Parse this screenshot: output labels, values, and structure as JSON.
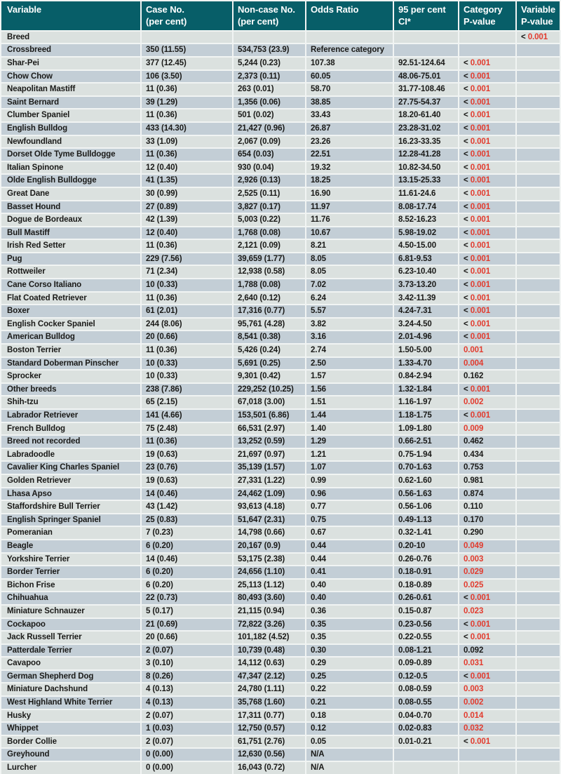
{
  "colors": {
    "header_bg": "#075e68",
    "row_light": "#dbe1df",
    "row_dark": "#c3ced6",
    "significant": "#e23b2e",
    "text": "#1a1a18",
    "grid": "#f1f4f3"
  },
  "table": {
    "columns": [
      "Variable",
      "Case No.\n(per cent)",
      "Non-case No.\n(per cent)",
      "Odds Ratio",
      "95 per cent\nCI*",
      "Category\nP-value",
      "Variable\nP-value"
    ],
    "rows": [
      {
        "variable": "Breed",
        "case_no": "",
        "noncase_no": "",
        "odds_ratio": "",
        "ci": "",
        "cat_p": null,
        "var_p": {
          "lt": true,
          "v": "0.001",
          "sig": true
        }
      },
      {
        "variable": "Crossbreed",
        "case_no": "350 (11.55)",
        "noncase_no": "534,753 (23.9)",
        "odds_ratio": "Reference category",
        "ci": "",
        "cat_p": null,
        "var_p": null
      },
      {
        "variable": "Shar-Pei",
        "case_no": "377 (12.45)",
        "noncase_no": "5,244 (0.23)",
        "odds_ratio": "107.38",
        "ci": "92.51-124.64",
        "cat_p": {
          "lt": true,
          "v": "0.001",
          "sig": true
        },
        "var_p": null
      },
      {
        "variable": "Chow Chow",
        "case_no": "106 (3.50)",
        "noncase_no": "2,373 (0.11)",
        "odds_ratio": "60.05",
        "ci": "48.06-75.01",
        "cat_p": {
          "lt": true,
          "v": "0.001",
          "sig": true
        },
        "var_p": null
      },
      {
        "variable": "Neapolitan Mastiff",
        "case_no": "11 (0.36)",
        "noncase_no": "263 (0.01)",
        "odds_ratio": "58.70",
        "ci": "31.77-108.46",
        "cat_p": {
          "lt": true,
          "v": "0.001",
          "sig": true
        },
        "var_p": null
      },
      {
        "variable": "Saint Bernard",
        "case_no": "39 (1.29)",
        "noncase_no": "1,356 (0.06)",
        "odds_ratio": "38.85",
        "ci": "27.75-54.37",
        "cat_p": {
          "lt": true,
          "v": "0.001",
          "sig": true
        },
        "var_p": null
      },
      {
        "variable": "Clumber Spaniel",
        "case_no": "11 (0.36)",
        "noncase_no": "501 (0.02)",
        "odds_ratio": "33.43",
        "ci": "18.20-61.40",
        "cat_p": {
          "lt": true,
          "v": "0.001",
          "sig": true
        },
        "var_p": null
      },
      {
        "variable": "English Bulldog",
        "case_no": "433 (14.30)",
        "noncase_no": "21,427 (0.96)",
        "odds_ratio": "26.87",
        "ci": "23.28-31.02",
        "cat_p": {
          "lt": true,
          "v": "0.001",
          "sig": true
        },
        "var_p": null
      },
      {
        "variable": "Newfoundland",
        "case_no": "33 (1.09)",
        "noncase_no": "2,067 (0.09)",
        "odds_ratio": "23.26",
        "ci": "16.23-33.35",
        "cat_p": {
          "lt": true,
          "v": "0.001",
          "sig": true
        },
        "var_p": null
      },
      {
        "variable": "Dorset Olde Tyme Bulldogge",
        "case_no": "11 (0.36)",
        "noncase_no": "654 (0.03)",
        "odds_ratio": "22.51",
        "ci": "12.28-41.28",
        "cat_p": {
          "lt": true,
          "v": "0.001",
          "sig": true
        },
        "var_p": null
      },
      {
        "variable": "Italian Spinone",
        "case_no": "12 (0.40)",
        "noncase_no": "930 (0.04)",
        "odds_ratio": "19.32",
        "ci": "10.82-34.50",
        "cat_p": {
          "lt": true,
          "v": "0.001",
          "sig": true
        },
        "var_p": null
      },
      {
        "variable": "Olde English Bulldogge",
        "case_no": "41 (1.35)",
        "noncase_no": "2,926 (0.13)",
        "odds_ratio": "18.25",
        "ci": "13.15-25.33",
        "cat_p": {
          "lt": true,
          "v": "0.001",
          "sig": true
        },
        "var_p": null
      },
      {
        "variable": "Great Dane",
        "case_no": "30 (0.99)",
        "noncase_no": "2,525 (0.11)",
        "odds_ratio": "16.90",
        "ci": "11.61-24.6",
        "cat_p": {
          "lt": true,
          "v": "0.001",
          "sig": true
        },
        "var_p": null
      },
      {
        "variable": "Basset Hound",
        "case_no": "27 (0.89)",
        "noncase_no": "3,827 (0.17)",
        "odds_ratio": "11.97",
        "ci": "8.08-17.74",
        "cat_p": {
          "lt": true,
          "v": "0.001",
          "sig": true
        },
        "var_p": null
      },
      {
        "variable": "Dogue de Bordeaux",
        "case_no": "42 (1.39)",
        "noncase_no": "5,003 (0.22)",
        "odds_ratio": "11.76",
        "ci": "8.52-16.23",
        "cat_p": {
          "lt": true,
          "v": "0.001",
          "sig": true
        },
        "var_p": null
      },
      {
        "variable": "Bull Mastiff",
        "case_no": "12 (0.40)",
        "noncase_no": "1,768 (0.08)",
        "odds_ratio": "10.67",
        "ci": "5.98-19.02",
        "cat_p": {
          "lt": true,
          "v": "0.001",
          "sig": true
        },
        "var_p": null
      },
      {
        "variable": "Irish Red Setter",
        "case_no": "11 (0.36)",
        "noncase_no": "2,121 (0.09)",
        "odds_ratio": "8.21",
        "ci": "4.50-15.00",
        "cat_p": {
          "lt": true,
          "v": "0.001",
          "sig": true
        },
        "var_p": null
      },
      {
        "variable": "Pug",
        "case_no": "229 (7.56)",
        "noncase_no": "39,659 (1.77)",
        "odds_ratio": "8.05",
        "ci": "6.81-9.53",
        "cat_p": {
          "lt": true,
          "v": "0.001",
          "sig": true
        },
        "var_p": null
      },
      {
        "variable": "Rottweiler",
        "case_no": "71 (2.34)",
        "noncase_no": "12,938 (0.58)",
        "odds_ratio": "8.05",
        "ci": "6.23-10.40",
        "cat_p": {
          "lt": true,
          "v": "0.001",
          "sig": true
        },
        "var_p": null
      },
      {
        "variable": "Cane Corso Italiano",
        "case_no": "10 (0.33)",
        "noncase_no": "1,788 (0.08)",
        "odds_ratio": "7.02",
        "ci": "3.73-13.20",
        "cat_p": {
          "lt": true,
          "v": "0.001",
          "sig": true
        },
        "var_p": null
      },
      {
        "variable": "Flat Coated Retriever",
        "case_no": "11 (0.36)",
        "noncase_no": "2,640 (0.12)",
        "odds_ratio": "6.24",
        "ci": "3.42-11.39",
        "cat_p": {
          "lt": true,
          "v": "0.001",
          "sig": true
        },
        "var_p": null
      },
      {
        "variable": "Boxer",
        "case_no": "61 (2.01)",
        "noncase_no": "17,316 (0.77)",
        "odds_ratio": "5.57",
        "ci": "4.24-7.31",
        "cat_p": {
          "lt": true,
          "v": "0.001",
          "sig": true
        },
        "var_p": null
      },
      {
        "variable": "English Cocker Spaniel",
        "case_no": "244 (8.06)",
        "noncase_no": "95,761 (4.28)",
        "odds_ratio": "3.82",
        "ci": "3.24-4.50",
        "cat_p": {
          "lt": true,
          "v": "0.001",
          "sig": true
        },
        "var_p": null
      },
      {
        "variable": "American Bulldog",
        "case_no": "20 (0.66)",
        "noncase_no": "8,541 (0.38)",
        "odds_ratio": "3.16",
        "ci": "2.01-4.96",
        "cat_p": {
          "lt": true,
          "v": "0.001",
          "sig": true
        },
        "var_p": null
      },
      {
        "variable": "Boston Terrier",
        "case_no": "11 (0.36)",
        "noncase_no": "5,426 (0.24)",
        "odds_ratio": "2.74",
        "ci": "1.50-5.00",
        "cat_p": {
          "lt": false,
          "v": "0.001",
          "sig": true
        },
        "var_p": null
      },
      {
        "variable": "Standard Doberman Pinscher",
        "case_no": "10 (0.33)",
        "noncase_no": "5,691 (0.25)",
        "odds_ratio": "2.50",
        "ci": "1.33-4.70",
        "cat_p": {
          "lt": false,
          "v": "0.004",
          "sig": true
        },
        "var_p": null
      },
      {
        "variable": "Sprocker",
        "case_no": "10 (0.33)",
        "noncase_no": "9,301 (0.42)",
        "odds_ratio": "1.57",
        "ci": "0.84-2.94",
        "cat_p": {
          "lt": false,
          "v": "0.162",
          "sig": false
        },
        "var_p": null
      },
      {
        "variable": "Other breeds",
        "case_no": "238 (7.86)",
        "noncase_no": "229,252 (10.25)",
        "odds_ratio": "1.56",
        "ci": "1.32-1.84",
        "cat_p": {
          "lt": true,
          "v": "0.001",
          "sig": true
        },
        "var_p": null
      },
      {
        "variable": "Shih-tzu",
        "case_no": "65 (2.15)",
        "noncase_no": "67,018 (3.00)",
        "odds_ratio": "1.51",
        "ci": "1.16-1.97",
        "cat_p": {
          "lt": false,
          "v": "0.002",
          "sig": true
        },
        "var_p": null
      },
      {
        "variable": "Labrador Retriever",
        "case_no": "141 (4.66)",
        "noncase_no": "153,501 (6.86)",
        "odds_ratio": "1.44",
        "ci": "1.18-1.75",
        "cat_p": {
          "lt": true,
          "v": "0.001",
          "sig": true
        },
        "var_p": null
      },
      {
        "variable": "French Bulldog",
        "case_no": "75 (2.48)",
        "noncase_no": "66,531 (2.97)",
        "odds_ratio": "1.40",
        "ci": "1.09-1.80",
        "cat_p": {
          "lt": false,
          "v": "0.009",
          "sig": true
        },
        "var_p": null
      },
      {
        "variable": "Breed not recorded",
        "case_no": "11 (0.36)",
        "noncase_no": "13,252 (0.59)",
        "odds_ratio": "1.29",
        "ci": "0.66-2.51",
        "cat_p": {
          "lt": false,
          "v": "0.462",
          "sig": false
        },
        "var_p": null
      },
      {
        "variable": "Labradoodle",
        "case_no": "19 (0.63)",
        "noncase_no": "21,697 (0.97)",
        "odds_ratio": "1.21",
        "ci": "0.75-1.94",
        "cat_p": {
          "lt": false,
          "v": "0.434",
          "sig": false
        },
        "var_p": null
      },
      {
        "variable": "Cavalier King Charles Spaniel",
        "case_no": "23 (0.76)",
        "noncase_no": "35,139 (1.57)",
        "odds_ratio": "1.07",
        "ci": "0.70-1.63",
        "cat_p": {
          "lt": false,
          "v": "0.753",
          "sig": false
        },
        "var_p": null
      },
      {
        "variable": "Golden Retriever",
        "case_no": "19 (0.63)",
        "noncase_no": "27,331 (1.22)",
        "odds_ratio": "0.99",
        "ci": "0.62-1.60",
        "cat_p": {
          "lt": false,
          "v": "0.981",
          "sig": false
        },
        "var_p": null
      },
      {
        "variable": "Lhasa Apso",
        "case_no": "14 (0.46)",
        "noncase_no": "24,462 (1.09)",
        "odds_ratio": "0.96",
        "ci": "0.56-1.63",
        "cat_p": {
          "lt": false,
          "v": "0.874",
          "sig": false
        },
        "var_p": null
      },
      {
        "variable": "Staffordshire Bull Terrier",
        "case_no": "43 (1.42)",
        "noncase_no": "93,613 (4.18)",
        "odds_ratio": "0.77",
        "ci": "0.56-1.06",
        "cat_p": {
          "lt": false,
          "v": "0.110",
          "sig": false
        },
        "var_p": null
      },
      {
        "variable": "English Springer Spaniel",
        "case_no": "25 (0.83)",
        "noncase_no": "51,647 (2.31)",
        "odds_ratio": "0.75",
        "ci": "0.49-1.13",
        "cat_p": {
          "lt": false,
          "v": "0.170",
          "sig": false
        },
        "var_p": null
      },
      {
        "variable": "Pomeranian",
        "case_no": "7 (0.23)",
        "noncase_no": "14,798 (0.66)",
        "odds_ratio": "0.67",
        "ci": "0.32-1.41",
        "cat_p": {
          "lt": false,
          "v": "0.290",
          "sig": false
        },
        "var_p": null
      },
      {
        "variable": "Beagle",
        "case_no": "6 (0.20)",
        "noncase_no": "20,167 (0.9)",
        "odds_ratio": "0.44",
        "ci": "0.20-10",
        "cat_p": {
          "lt": false,
          "v": "0.049",
          "sig": true
        },
        "var_p": null
      },
      {
        "variable": "Yorkshire Terrier",
        "case_no": "14 (0.46)",
        "noncase_no": "53,175 (2.38)",
        "odds_ratio": "0.44",
        "ci": "0.26-0.76",
        "cat_p": {
          "lt": false,
          "v": "0.003",
          "sig": true
        },
        "var_p": null
      },
      {
        "variable": "Border Terrier",
        "case_no": "6 (0.20)",
        "noncase_no": "24,656 (1.10)",
        "odds_ratio": "0.41",
        "ci": "0.18-0.91",
        "cat_p": {
          "lt": false,
          "v": "0.029",
          "sig": true
        },
        "var_p": null
      },
      {
        "variable": "Bichon Frise",
        "case_no": "6 (0.20)",
        "noncase_no": "25,113 (1.12)",
        "odds_ratio": "0.40",
        "ci": "0.18-0.89",
        "cat_p": {
          "lt": false,
          "v": "0.025",
          "sig": true
        },
        "var_p": null
      },
      {
        "variable": "Chihuahua",
        "case_no": "22 (0.73)",
        "noncase_no": "80,493 (3.60)",
        "odds_ratio": "0.40",
        "ci": "0.26-0.61",
        "cat_p": {
          "lt": true,
          "v": "0.001",
          "sig": true
        },
        "var_p": null
      },
      {
        "variable": "Miniature Schnauzer",
        "case_no": "5 (0.17)",
        "noncase_no": "21,115 (0.94)",
        "odds_ratio": "0.36",
        "ci": "0.15-0.87",
        "cat_p": {
          "lt": false,
          "v": "0.023",
          "sig": true
        },
        "var_p": null
      },
      {
        "variable": "Cockapoo",
        "case_no": "21 (0.69)",
        "noncase_no": "72,822 (3.26)",
        "odds_ratio": "0.35",
        "ci": "0.23-0.56",
        "cat_p": {
          "lt": true,
          "v": "0.001",
          "sig": true
        },
        "var_p": null
      },
      {
        "variable": "Jack Russell Terrier",
        "case_no": "20 (0.66)",
        "noncase_no": "101,182 (4.52)",
        "odds_ratio": "0.35",
        "ci": "0.22-0.55",
        "cat_p": {
          "lt": true,
          "v": "0.001",
          "sig": true
        },
        "var_p": null
      },
      {
        "variable": "Patterdale Terrier",
        "case_no": "2 (0.07)",
        "noncase_no": "10,739 (0.48)",
        "odds_ratio": "0.30",
        "ci": "0.08-1.21",
        "cat_p": {
          "lt": false,
          "v": "0.092",
          "sig": false
        },
        "var_p": null
      },
      {
        "variable": "Cavapoo",
        "case_no": "3 (0.10)",
        "noncase_no": "14,112 (0.63)",
        "odds_ratio": "0.29",
        "ci": "0.09-0.89",
        "cat_p": {
          "lt": false,
          "v": "0.031",
          "sig": true
        },
        "var_p": null
      },
      {
        "variable": "German Shepherd Dog",
        "case_no": "8 (0.26)",
        "noncase_no": "47,347 (2.12)",
        "odds_ratio": "0.25",
        "ci": "0.12-0.5",
        "cat_p": {
          "lt": true,
          "v": "0.001",
          "sig": true
        },
        "var_p": null
      },
      {
        "variable": "Miniature Dachshund",
        "case_no": "4 (0.13)",
        "noncase_no": "24,780 (1.11)",
        "odds_ratio": "0.22",
        "ci": "0.08-0.59",
        "cat_p": {
          "lt": false,
          "v": "0.003",
          "sig": true
        },
        "var_p": null
      },
      {
        "variable": "West Highland White Terrier",
        "case_no": "4 (0.13)",
        "noncase_no": "35,768 (1.60)",
        "odds_ratio": "0.21",
        "ci": "0.08-0.55",
        "cat_p": {
          "lt": false,
          "v": "0.002",
          "sig": true
        },
        "var_p": null
      },
      {
        "variable": "Husky",
        "case_no": "2 (0.07)",
        "noncase_no": "17,311 (0.77)",
        "odds_ratio": "0.18",
        "ci": "0.04-0.70",
        "cat_p": {
          "lt": false,
          "v": "0.014",
          "sig": true
        },
        "var_p": null
      },
      {
        "variable": "Whippet",
        "case_no": "1 (0.03)",
        "noncase_no": "12,750 (0.57)",
        "odds_ratio": "0.12",
        "ci": "0.02-0.83",
        "cat_p": {
          "lt": false,
          "v": "0.032",
          "sig": true
        },
        "var_p": null
      },
      {
        "variable": "Border Collie",
        "case_no": "2 (0.07)",
        "noncase_no": "61,751 (2.76)",
        "odds_ratio": "0.05",
        "ci": "0.01-0.21",
        "cat_p": {
          "lt": true,
          "v": "0.001",
          "sig": true
        },
        "var_p": null
      },
      {
        "variable": "Greyhound",
        "case_no": "0 (0.00)",
        "noncase_no": "12,630 (0.56)",
        "odds_ratio": "N/A",
        "ci": "",
        "cat_p": null,
        "var_p": null
      },
      {
        "variable": "Lurcher",
        "case_no": "0 (0.00)",
        "noncase_no": "16,043 (0.72)",
        "odds_ratio": "N/A",
        "ci": "",
        "cat_p": null,
        "var_p": null
      }
    ]
  }
}
